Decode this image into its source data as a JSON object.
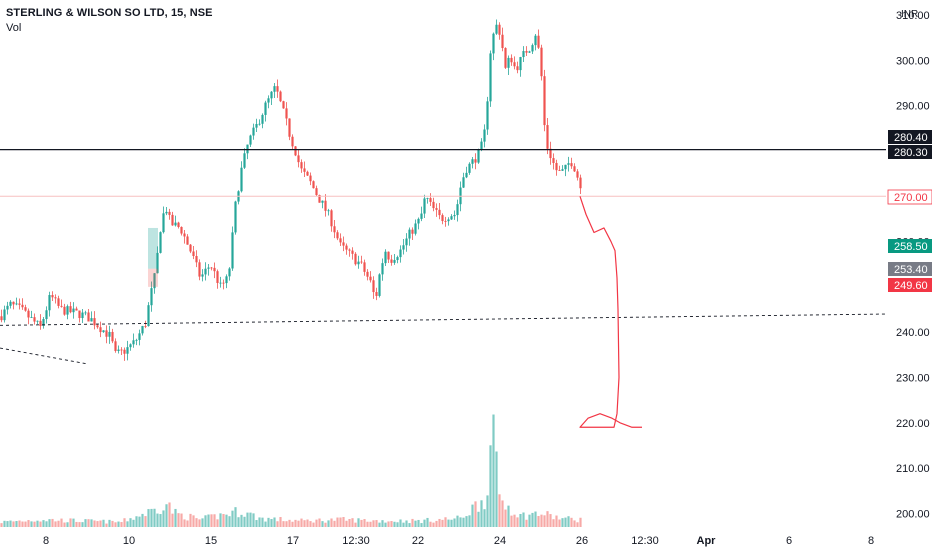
{
  "header": {
    "title": "STERLING & WILSON SO LTD, 15, NSE",
    "volume_label": "Vol",
    "currency": "INR"
  },
  "colors": {
    "up": "#26a69a",
    "down": "#ef5350",
    "up_volume": "#80cbc4",
    "down_volume": "#f7a9a7",
    "resistance_line": "#131722",
    "support_line": "#f7c0c0",
    "annotation": "#f23645",
    "badge_dark": "#131722",
    "badge_red": "#f23645",
    "badge_teal": "#089981",
    "badge_grey": "#787b86"
  },
  "chart_data": {
    "type": "candlestick",
    "y_axis": {
      "range": [
        195,
        312
      ],
      "ticks": [
        200,
        210,
        220,
        230,
        240,
        250,
        260,
        270,
        280,
        290,
        300,
        310
      ],
      "tick_labels": [
        "200.00",
        "210.00",
        "220.00",
        "230.00",
        "240.00",
        "250.00",
        "260.00",
        "270.00",
        "280.00",
        "290.00",
        "300.00",
        "310.00"
      ]
    },
    "x_axis": {
      "labels": [
        "8",
        "10",
        "15",
        "17",
        "12:30",
        "22",
        "24",
        "26",
        "12:30",
        "Apr",
        "6",
        "8"
      ],
      "bold_labels": [
        "Apr"
      ]
    },
    "price_badges": [
      {
        "label": "280.40",
        "value": 280.4,
        "style": "dark"
      },
      {
        "label": "280.30",
        "value": 280.3,
        "style": "dark"
      },
      {
        "label": "270.00",
        "value": 270.0,
        "style": "red_outline"
      },
      {
        "label": "258.50",
        "value": 258.5,
        "style": "teal"
      },
      {
        "label": "253.40",
        "value": 253.4,
        "style": "grey"
      },
      {
        "label": "249.60",
        "value": 249.6,
        "style": "red"
      }
    ],
    "horizontal_lines": [
      {
        "value": 280.3,
        "kind": "resistance"
      },
      {
        "value": 270.0,
        "kind": "support"
      }
    ],
    "price_path": [
      [
        0,
        243.5
      ],
      [
        10,
        246
      ],
      [
        20,
        245
      ],
      [
        30,
        243
      ],
      [
        40,
        241
      ],
      [
        50,
        248
      ],
      [
        60,
        245
      ],
      [
        70,
        244.5
      ],
      [
        80,
        244
      ],
      [
        90,
        243
      ],
      [
        100,
        241
      ],
      [
        110,
        239
      ],
      [
        115,
        235
      ],
      [
        125,
        236
      ],
      [
        135,
        238
      ],
      [
        145,
        242
      ],
      [
        150,
        248
      ],
      [
        155,
        253
      ],
      [
        160,
        263
      ],
      [
        165,
        268
      ],
      [
        170,
        264
      ],
      [
        180,
        263
      ],
      [
        190,
        258
      ],
      [
        200,
        252
      ],
      [
        210,
        255
      ],
      [
        220,
        250
      ],
      [
        228,
        252
      ],
      [
        235,
        268
      ],
      [
        240,
        275
      ],
      [
        248,
        282
      ],
      [
        255,
        285
      ],
      [
        265,
        290
      ],
      [
        275,
        294
      ],
      [
        285,
        287
      ],
      [
        290,
        283
      ],
      [
        295,
        280
      ],
      [
        300,
        276
      ],
      [
        310,
        273
      ],
      [
        320,
        269
      ],
      [
        330,
        265
      ],
      [
        340,
        259
      ],
      [
        350,
        257
      ],
      [
        360,
        255
      ],
      [
        370,
        251
      ],
      [
        375,
        247
      ],
      [
        380,
        254
      ],
      [
        385,
        258
      ],
      [
        390,
        256
      ],
      [
        400,
        258
      ],
      [
        410,
        262
      ],
      [
        420,
        265
      ],
      [
        425,
        270
      ],
      [
        430,
        268
      ],
      [
        440,
        265
      ],
      [
        450,
        266
      ],
      [
        455,
        266
      ],
      [
        460,
        272
      ],
      [
        465,
        276
      ],
      [
        470,
        277
      ],
      [
        480,
        280
      ],
      [
        485,
        285
      ],
      [
        490,
        302
      ],
      [
        495,
        308
      ],
      [
        500,
        306
      ],
      [
        505,
        298
      ],
      [
        510,
        301
      ],
      [
        515,
        298
      ],
      [
        520,
        300
      ],
      [
        525,
        302
      ],
      [
        530,
        303
      ],
      [
        535,
        306
      ],
      [
        540,
        300
      ],
      [
        545,
        282
      ],
      [
        550,
        279
      ],
      [
        555,
        276
      ],
      [
        560,
        275
      ],
      [
        565,
        276
      ],
      [
        570,
        278
      ],
      [
        575,
        276
      ],
      [
        580,
        272
      ]
    ],
    "volume_path": [
      [
        0,
        0.04
      ],
      [
        40,
        0.06
      ],
      [
        80,
        0.05
      ],
      [
        120,
        0.04
      ],
      [
        155,
        0.14
      ],
      [
        165,
        0.2
      ],
      [
        175,
        0.11
      ],
      [
        200,
        0.06
      ],
      [
        240,
        0.13
      ],
      [
        260,
        0.07
      ],
      [
        300,
        0.05
      ],
      [
        340,
        0.06
      ],
      [
        380,
        0.05
      ],
      [
        420,
        0.05
      ],
      [
        460,
        0.07
      ],
      [
        485,
        0.24
      ],
      [
        492,
        0.72
      ],
      [
        500,
        0.22
      ],
      [
        520,
        0.09
      ],
      [
        540,
        0.11
      ],
      [
        560,
        0.07
      ],
      [
        580,
        0.06
      ]
    ],
    "volume_max_value": 225,
    "trend_lines": [
      {
        "style": "dashed",
        "from": [
          0,
          241.5
        ],
        "to": [
          885,
          244.0
        ]
      },
      {
        "style": "dashed",
        "from": [
          0,
          236.5
        ],
        "to": [
          87,
          233.0
        ]
      }
    ],
    "annotation": {
      "path": [
        [
          580,
          270
        ],
        [
          586,
          266
        ],
        [
          594,
          262
        ],
        [
          604,
          263
        ],
        [
          611,
          260
        ],
        [
          615,
          258
        ],
        [
          617,
          252
        ],
        [
          618,
          245
        ],
        [
          619,
          230
        ],
        [
          617,
          222
        ],
        [
          614,
          219
        ],
        [
          600,
          219
        ],
        [
          590,
          219
        ],
        [
          580,
          219
        ],
        [
          588,
          221
        ],
        [
          600,
          222
        ],
        [
          612,
          221
        ],
        [
          620,
          220
        ],
        [
          632,
          219
        ],
        [
          642,
          219
        ]
      ]
    },
    "bull_box": {
      "from": 148,
      "to": 158,
      "low": 254,
      "high": 263
    }
  }
}
